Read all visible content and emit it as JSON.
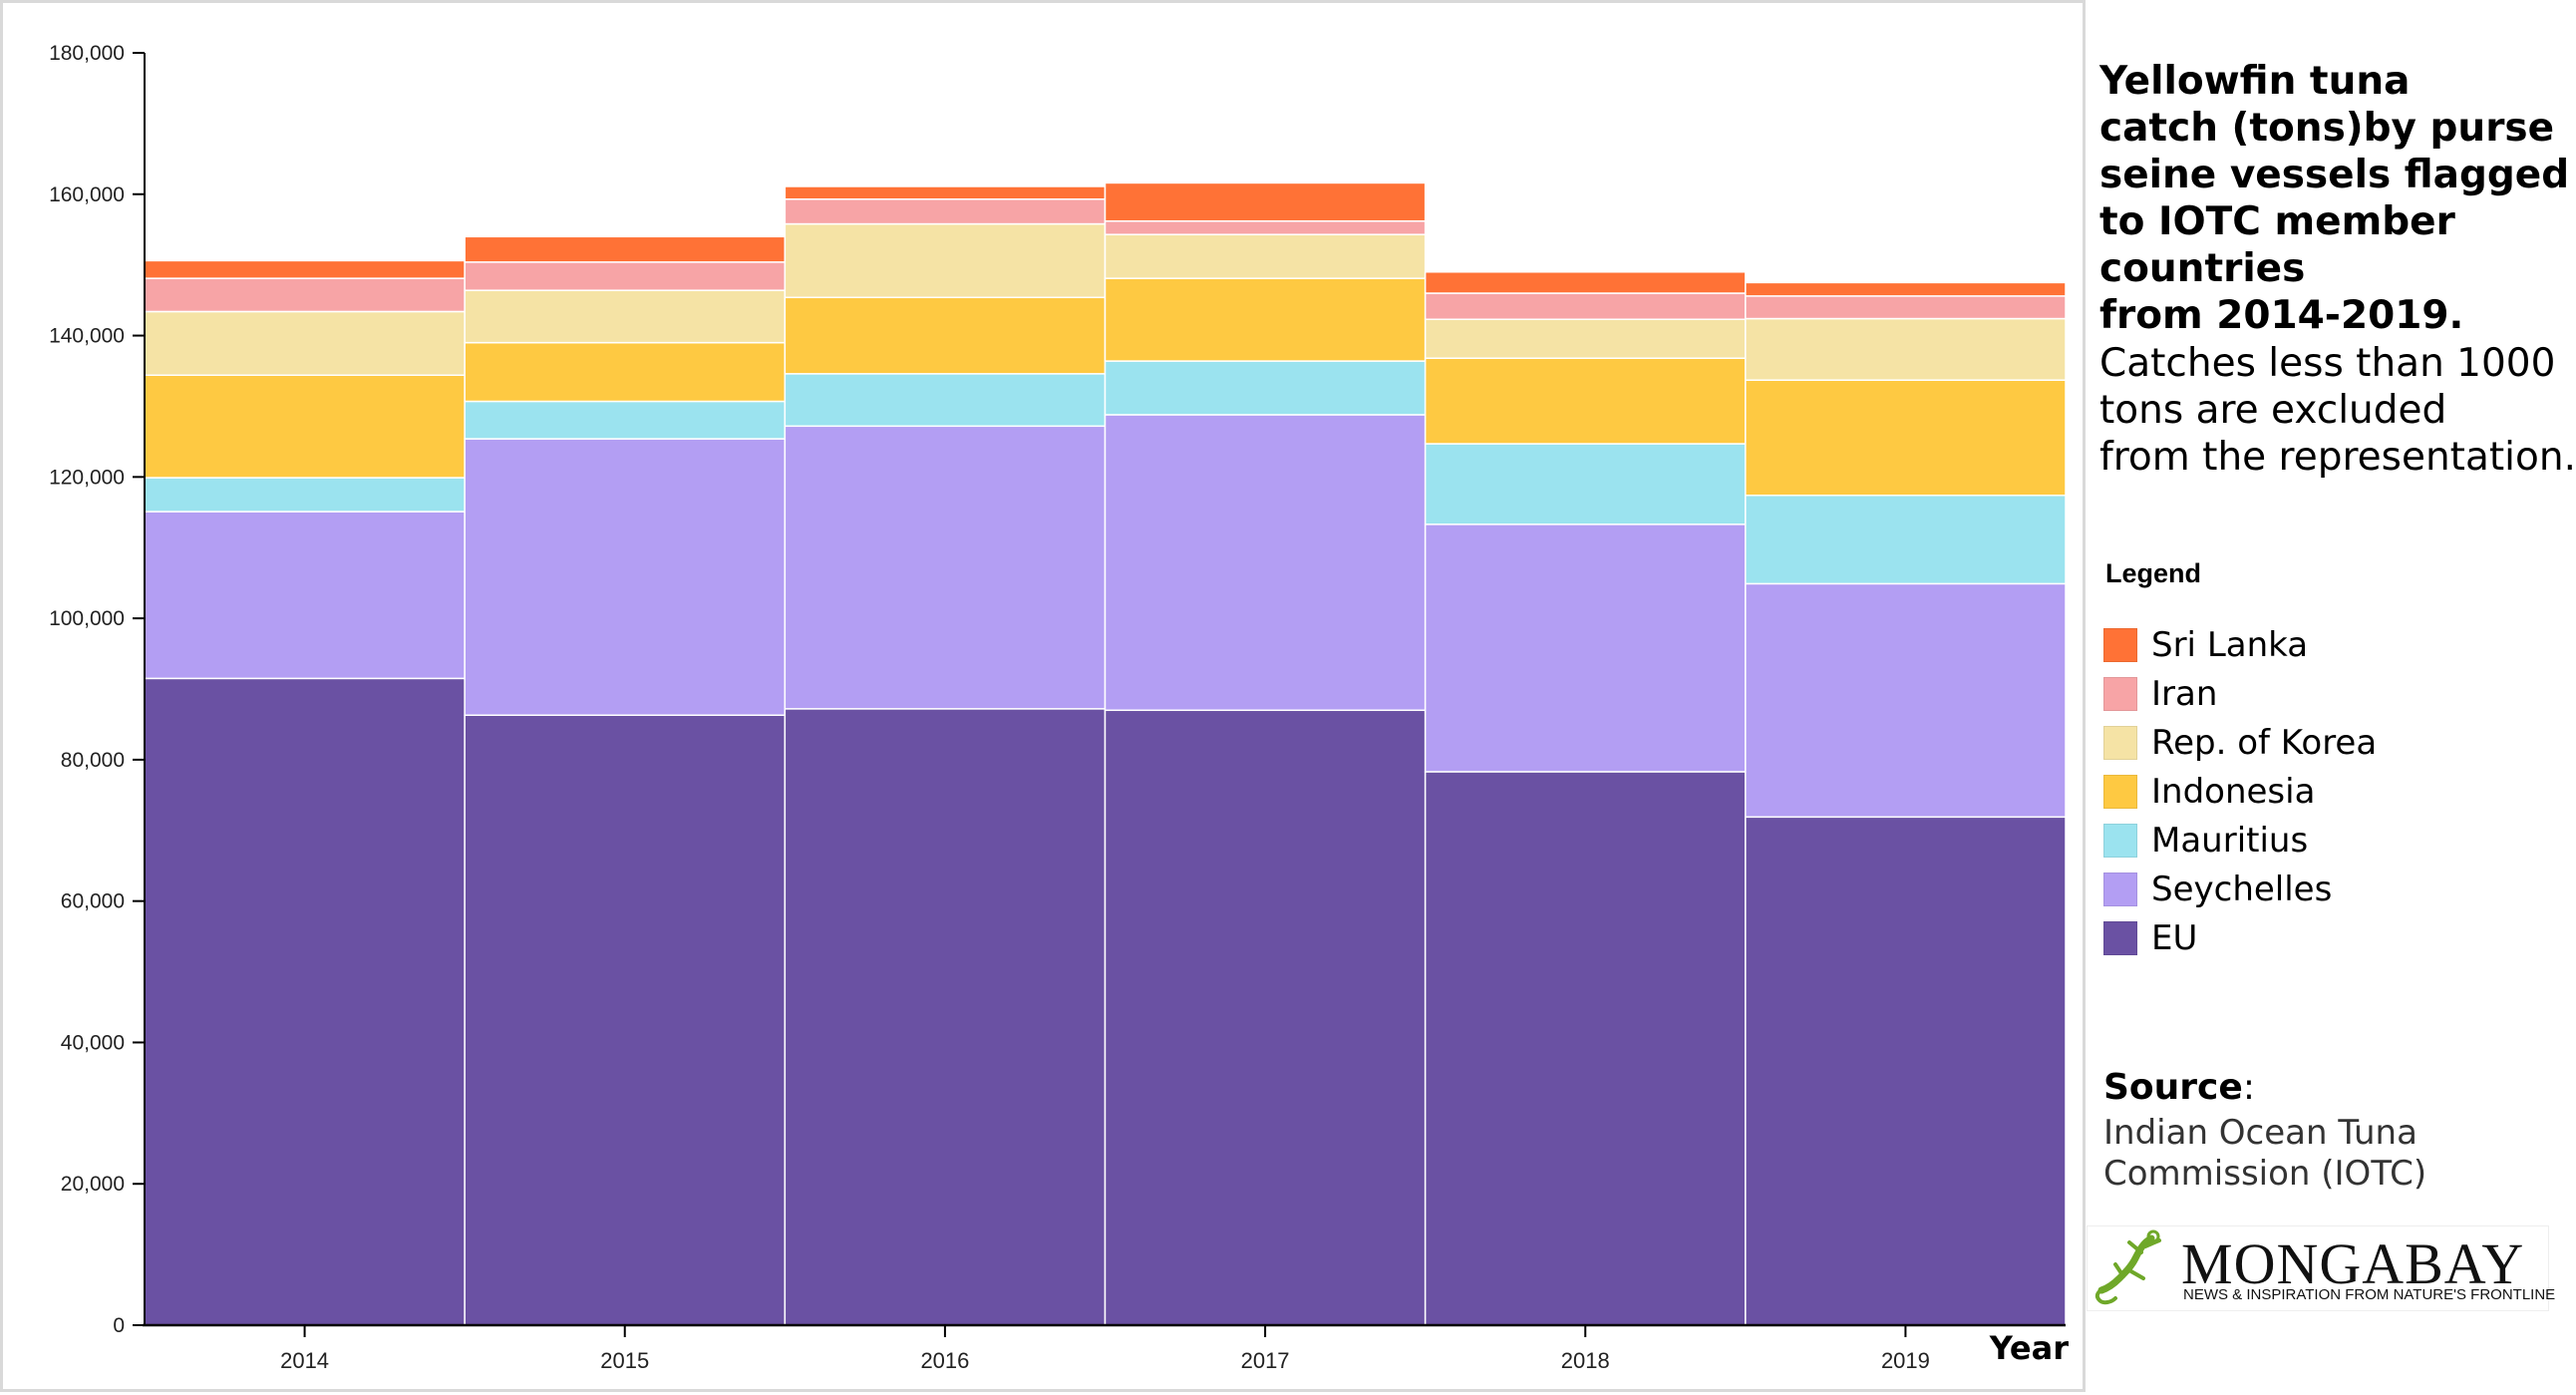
{
  "title": {
    "bold_lines": [
      "Yellowfin tuna",
      "catch (tons)by purse",
      "seine vessels flagged",
      "to IOTC member",
      "countries",
      "from 2014-2019."
    ],
    "regular_lines": [
      "Catches less than 1000",
      "tons are excluded",
      "from the representation."
    ]
  },
  "legend": {
    "heading": "Legend",
    "items": [
      {
        "label": "Sri Lanka",
        "color": "#ff7236"
      },
      {
        "label": "Iran",
        "color": "#f7a4a6"
      },
      {
        "label": "Rep. of Korea",
        "color": "#f5e3a5"
      },
      {
        "label": "Indonesia",
        "color": "#fec942"
      },
      {
        "label": "Mauritius",
        "color": "#9be3ef"
      },
      {
        "label": "Seychelles",
        "color": "#b39ef3"
      },
      {
        "label": "EU",
        "color": "#6a51a3"
      }
    ]
  },
  "source": {
    "label": "Source",
    "suffix": ":",
    "lines": [
      "Indian Ocean Tuna",
      "Commission (IOTC)"
    ]
  },
  "logo": {
    "name": "MONGABAY",
    "tagline": "NEWS & INSPIRATION FROM NATURE'S FRONTLINE",
    "icon": "gecko-icon",
    "colors": {
      "gecko": "#6fa829"
    }
  },
  "chart_data": {
    "type": "bar",
    "stacked": true,
    "xlabel": "Year",
    "ylabel": "",
    "ylim": [
      0,
      180000
    ],
    "yticks": [
      0,
      20000,
      40000,
      60000,
      80000,
      100000,
      120000,
      140000,
      160000,
      180000
    ],
    "ytick_labels": [
      "0",
      "20,000",
      "40,000",
      "60,000",
      "80,000",
      "100,000",
      "120,000",
      "140,000",
      "160,000",
      "180,000"
    ],
    "grid": false,
    "categories": [
      "2014",
      "2015",
      "2016",
      "2017",
      "2018",
      "2019"
    ],
    "series": [
      {
        "name": "EU",
        "color": "#6a51a3",
        "values": [
          91500,
          86300,
          87200,
          87000,
          78300,
          71900
        ]
      },
      {
        "name": "Seychelles",
        "color": "#b39ef3",
        "values": [
          23600,
          39100,
          40000,
          41800,
          35000,
          33000
        ]
      },
      {
        "name": "Mauritius",
        "color": "#9be3ef",
        "values": [
          4800,
          5300,
          7400,
          7600,
          11400,
          12500
        ]
      },
      {
        "name": "Indonesia",
        "color": "#fec942",
        "values": [
          14500,
          8300,
          10800,
          11700,
          12100,
          16300
        ]
      },
      {
        "name": "Rep. of Korea",
        "color": "#f5e3a5",
        "values": [
          9000,
          7400,
          10400,
          6200,
          5500,
          8700
        ]
      },
      {
        "name": "Iran",
        "color": "#f7a4a6",
        "values": [
          4700,
          4000,
          3500,
          1900,
          3700,
          3200
        ]
      },
      {
        "name": "Sri Lanka",
        "color": "#ff7236",
        "values": [
          2500,
          3600,
          1800,
          5400,
          3000,
          1900
        ]
      }
    ]
  }
}
